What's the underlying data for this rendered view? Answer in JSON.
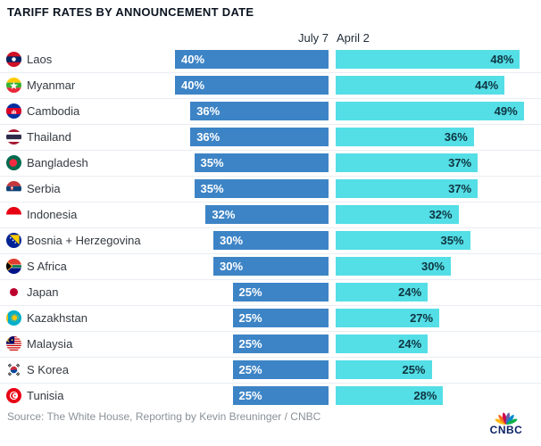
{
  "title": "TARIFF RATES BY ANNOUNCEMENT DATE",
  "column_headers": {
    "july": "July 7",
    "april": "April 2"
  },
  "source": "Source: The White House, Reporting by Kevin Breuninger / CNBC",
  "logo_text": "CNBC",
  "colors": {
    "july_bar": "#3d84c6",
    "april_bar": "#54dee6",
    "july_label": "#ffffff",
    "april_label": "#0e3440",
    "row_divider": "#e9edf2"
  },
  "chart_data": {
    "type": "bar",
    "orientation": "horizontal-paired",
    "title": "TARIFF RATES BY ANNOUNCEMENT DATE",
    "value_suffix": "%",
    "xlim": [
      0,
      49
    ],
    "grid": false,
    "legend_position": "column-headers-top",
    "categories": [
      "Laos",
      "Myanmar",
      "Cambodia",
      "Thailand",
      "Bangladesh",
      "Serbia",
      "Indonesia",
      "Bosnia + Herzegovina",
      "S Africa",
      "Japan",
      "Kazakhstan",
      "Malaysia",
      "S Korea",
      "Tunisia"
    ],
    "flag_icons": [
      "flag-laos",
      "flag-myanmar",
      "flag-cambodia",
      "flag-thailand",
      "flag-bangladesh",
      "flag-serbia",
      "flag-indonesia",
      "flag-bosnia-herzegovina",
      "flag-south-africa",
      "flag-japan",
      "flag-kazakhstan",
      "flag-malaysia",
      "flag-south-korea",
      "flag-tunisia"
    ],
    "series": [
      {
        "name": "July 7",
        "values": [
          40,
          40,
          36,
          36,
          35,
          35,
          32,
          30,
          30,
          25,
          25,
          25,
          25,
          25
        ]
      },
      {
        "name": "April 2",
        "values": [
          48,
          44,
          49,
          36,
          37,
          37,
          32,
          35,
          30,
          24,
          27,
          24,
          25,
          28
        ]
      }
    ]
  }
}
